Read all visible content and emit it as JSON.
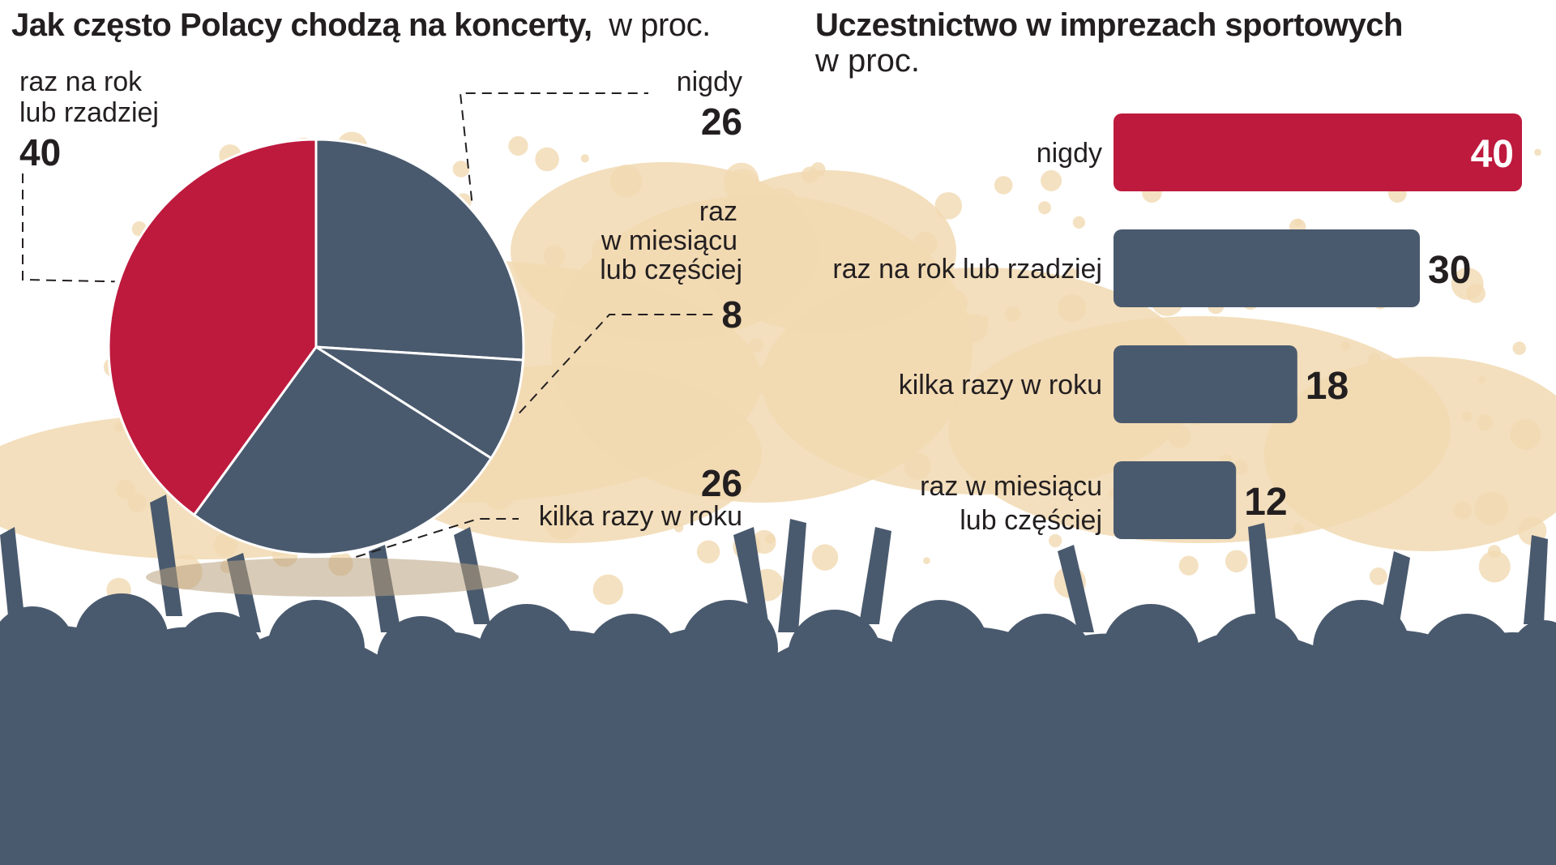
{
  "colors": {
    "highlight": "#be1a3e",
    "slate": "#4a5a6e",
    "splash": "#f1d9b2",
    "crowd": "#4a5a6e"
  },
  "chart_data": [
    {
      "type": "pie",
      "title": "Jak często Polacy chodzą na koncerty,",
      "subtitle": "w proc.",
      "slices": [
        {
          "label": "nigdy",
          "value": 26,
          "value_text": "26",
          "color": "#4a5a6e"
        },
        {
          "label": "raz w miesiącu lub częściej",
          "label_lines": [
            "raz",
            "w miesiącu",
            "lub częściej"
          ],
          "value": 8,
          "value_text": "8",
          "color": "#4a5a6e"
        },
        {
          "label": "kilka razy w roku",
          "value": 26,
          "value_text": "26",
          "color": "#4a5a6e"
        },
        {
          "label": "raz na rok lub rzadziej",
          "label_lines": [
            "raz na rok",
            "lub rzadziej"
          ],
          "value": 40,
          "value_text": "40",
          "color": "#be1a3e"
        }
      ]
    },
    {
      "type": "bar",
      "orientation": "horizontal",
      "title": "Uczestnictwo w imprezach sportowych",
      "subtitle": "w proc.",
      "categories": [
        "nigdy",
        "raz na rok lub rzadziej",
        "kilka razy w roku",
        "raz w miesiącu lub częściej"
      ],
      "category_lines": [
        [
          "nigdy"
        ],
        [
          "raz na rok lub rzadziej"
        ],
        [
          "kilka razy w roku"
        ],
        [
          "raz w miesiącu",
          "lub częściej"
        ]
      ],
      "values": [
        40,
        30,
        18,
        12
      ],
      "value_texts": [
        "40",
        "30",
        "18",
        "12"
      ],
      "colors": [
        "#be1a3e",
        "#4a5a6e",
        "#4a5a6e",
        "#4a5a6e"
      ],
      "xlim": [
        0,
        40
      ]
    }
  ]
}
